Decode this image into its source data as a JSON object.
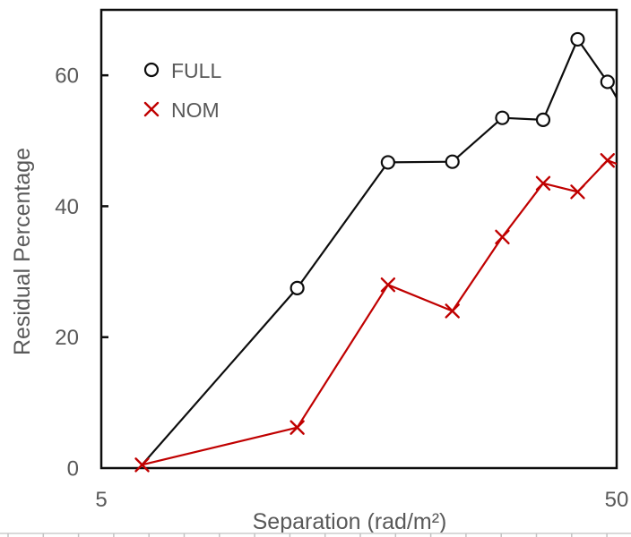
{
  "chart_data": {
    "type": "line",
    "title": "",
    "x_axis": {
      "label": "Separation (rad/m²)",
      "scale": "log",
      "min": 5,
      "max": 50,
      "tick_values": [
        5,
        50
      ],
      "tick_labels": [
        "5",
        "50"
      ],
      "grid": false
    },
    "y_axis": {
      "label": "Residual Percentage",
      "scale": "linear",
      "min": 0,
      "max": 70,
      "tick_values": [
        0,
        20,
        40,
        60
      ],
      "tick_labels": [
        "0",
        "20",
        "40",
        "60"
      ],
      "grid": false
    },
    "legend": {
      "position": "inside-top-left",
      "items": [
        {
          "label": "FULL",
          "marker": "circle",
          "color": "#0d0d0d"
        },
        {
          "label": "NOM",
          "marker": "x",
          "color": "#c00000"
        }
      ]
    },
    "series": [
      {
        "name": "FULL",
        "marker": "circle",
        "color": "#0d0d0d",
        "hide_first_marker": true,
        "x": [
          6,
          12,
          18,
          24,
          30,
          36,
          42,
          48
        ],
        "y": [
          0.5,
          27.5,
          46.7,
          46.8,
          53.5,
          53.2,
          65.5,
          59
        ],
        "continues_to": {
          "x": 54,
          "y": 52
        }
      },
      {
        "name": "NOM",
        "marker": "x",
        "color": "#c00000",
        "hide_first_marker": false,
        "x": [
          6,
          12,
          18,
          24,
          30,
          36,
          42,
          48
        ],
        "y": [
          0.5,
          6.2,
          28,
          24,
          35.3,
          43.5,
          42.2,
          47
        ],
        "continues_to": {
          "x": 54,
          "y": 45.5
        }
      }
    ],
    "colors": {
      "axis_text": "#595959",
      "plot_border": "#0d0d0d",
      "full_series": "#0d0d0d",
      "nom_series": "#c00000",
      "adjacent_edge_line": "#d9d9d9",
      "adjacent_edge_ticks": "#c2c2c2"
    }
  }
}
